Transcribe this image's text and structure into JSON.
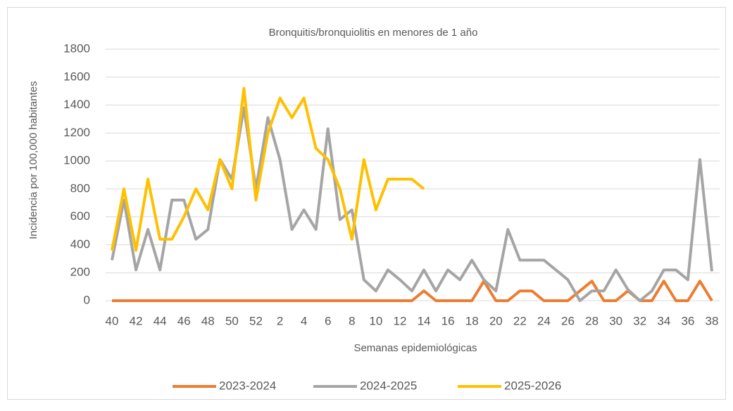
{
  "chart_data": {
    "type": "line",
    "title": "Bronquitis/bronquiolitis en menores de 1 año",
    "x_label": "Semanas epidemiológicas",
    "y_label": "Incidencia por 100,000 habitantes",
    "categories": [
      "40",
      null,
      "42",
      null,
      "44",
      null,
      "46",
      null,
      "48",
      null,
      "50",
      null,
      "52",
      null,
      "2",
      null,
      "4",
      null,
      "6",
      null,
      "8",
      null,
      "10",
      null,
      "12",
      null,
      "14",
      null,
      "16",
      null,
      "18",
      null,
      "20",
      null,
      "22",
      null,
      "24",
      null,
      "26",
      null,
      "28",
      null,
      "30",
      null,
      "32",
      null,
      "34",
      null,
      "36",
      null,
      "38"
    ],
    "series": [
      {
        "name": "2023-2024",
        "color": "#ED7D31",
        "values": [
          0,
          0,
          0,
          0,
          0,
          0,
          0,
          0,
          0,
          0,
          0,
          0,
          0,
          0,
          0,
          0,
          0,
          0,
          0,
          0,
          0,
          0,
          0,
          0,
          0,
          0,
          70,
          0,
          0,
          0,
          0,
          140,
          0,
          0,
          70,
          70,
          0,
          0,
          0,
          70,
          140,
          0,
          0,
          70,
          0,
          0,
          140,
          0,
          0,
          140,
          0
        ]
      },
      {
        "name": "2024-2025",
        "color": "#A5A5A5",
        "values": [
          290,
          720,
          220,
          510,
          220,
          720,
          720,
          440,
          510,
          1010,
          870,
          1380,
          800,
          1310,
          1010,
          510,
          650,
          510,
          1230,
          580,
          650,
          150,
          70,
          220,
          150,
          70,
          220,
          70,
          220,
          150,
          290,
          150,
          70,
          510,
          290,
          290,
          290,
          220,
          150,
          0,
          70,
          70,
          220,
          80,
          0,
          70,
          220,
          220,
          150,
          1010,
          210
        ]
      },
      {
        "name": "2025-2026",
        "color": "#FFC000",
        "values": [
          360,
          800,
          360,
          870,
          440,
          440,
          600,
          800,
          650,
          1010,
          800,
          1520,
          720,
          1200,
          1450,
          1310,
          1450,
          1090,
          1010,
          800,
          440,
          1010,
          650,
          870,
          870,
          870,
          800,
          null,
          null,
          null,
          null,
          null,
          null,
          null,
          null,
          null,
          null,
          null,
          null,
          null,
          null,
          null,
          null,
          null,
          null,
          null,
          null,
          null,
          null,
          null,
          null
        ]
      }
    ],
    "ylim": [
      0,
      1800
    ],
    "yticks": [
      0,
      200,
      400,
      600,
      800,
      1000,
      1200,
      1400,
      1600,
      1800
    ],
    "grid": true,
    "legend": "bottom"
  }
}
